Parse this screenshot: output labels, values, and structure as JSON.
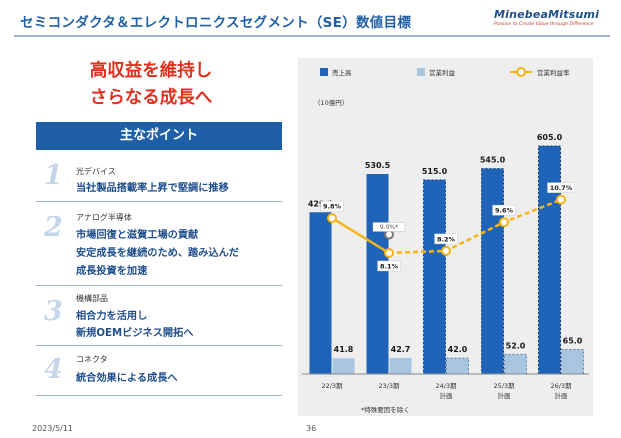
{
  "header": {
    "title": "セミコンダクタ＆エレクトロニクスセグメント（SE）数値目標",
    "logo_name": "MinebeaMitsumi",
    "logo_tagline": "Passion to Create Value through Difference"
  },
  "headline": {
    "line1": "高収益を維持し",
    "line2": "さらなる成長へ"
  },
  "points": {
    "header": "主なポイント",
    "items": [
      {
        "num": "1",
        "category": "光デバイス",
        "lines": [
          "当社製品搭載率上昇で堅調に推移"
        ]
      },
      {
        "num": "2",
        "category": "アナログ半導体",
        "lines": [
          "市場回復と滋賀工場の貢献",
          "安定成長を継続のため、踏み込んだ",
          "成長投資を加速"
        ]
      },
      {
        "num": "3",
        "category": "機構部品",
        "lines": [
          "相合力を活用し",
          "新規OEMビジネス開拓へ"
        ]
      },
      {
        "num": "4",
        "category": "コネクタ",
        "lines": [
          "統合効果による成長へ"
        ]
      }
    ]
  },
  "chart_data": {
    "type": "bar",
    "unit_label": "（10億円）",
    "categories": [
      "22/3期",
      "23/3期",
      "24/3期",
      "25/3期",
      "26/3期"
    ],
    "category_sublabels": [
      "",
      "",
      "計画",
      "計画",
      "計画"
    ],
    "series": [
      {
        "name": "売上高",
        "values": [
          429.1,
          530.5,
          515.0,
          545.0,
          605.0
        ],
        "labels": [
          "429.1",
          "530.5",
          "515.0",
          "545.0",
          "605.0"
        ],
        "color": "#1f64b8"
      },
      {
        "name": "営業利益",
        "values": [
          41.8,
          42.7,
          42.0,
          52.0,
          65.0
        ],
        "labels": [
          "41.8",
          "42.7",
          "42.0",
          "52.0",
          "65.0"
        ],
        "color": "#a9c6e0"
      },
      {
        "name": "営業利益率",
        "values": [
          9.8,
          8.1,
          8.2,
          9.6,
          10.7
        ],
        "labels": [
          "9.8%",
          "8.1%",
          "8.2%",
          "9.6%",
          "10.7%"
        ],
        "color": "#f5b417",
        "type": "line"
      }
    ],
    "annotations": [
      {
        "category": "23/3期",
        "value": 9.0,
        "label": "9.0%*"
      }
    ],
    "footnote": "*特殊要因を除く",
    "ylim_bars": [
      0,
      650
    ],
    "ylim_margin": [
      0,
      40
    ],
    "grid": false,
    "legend_position": "top"
  },
  "footer": {
    "date": "2023/5/11",
    "page": "36"
  }
}
